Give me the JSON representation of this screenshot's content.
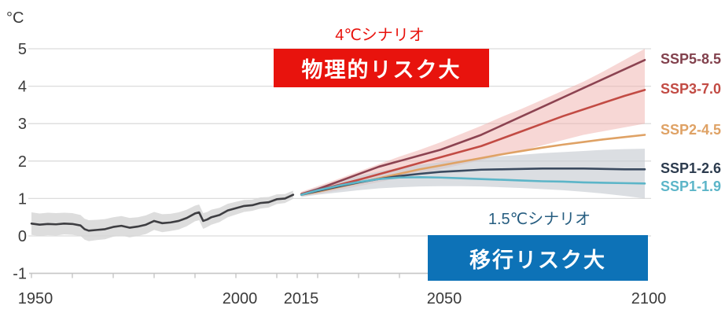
{
  "chart_data": {
    "type": "line",
    "title": "",
    "ylabel": "°C",
    "xlim": [
      1950,
      2100
    ],
    "ylim": [
      -1,
      5
    ],
    "y_ticks": [
      5,
      4,
      3,
      2,
      1,
      0,
      -1
    ],
    "x_tick_labels": [
      1950,
      2000,
      2015,
      2050,
      2100
    ],
    "x_minor_ticks": [
      1950,
      1960,
      1970,
      1980,
      1990,
      2000,
      2010,
      2015,
      2020,
      2030,
      2040,
      2050,
      2060,
      2070,
      2080,
      2090,
      2100
    ],
    "grid": "horizontal",
    "legend_position": "labels-at-right-edge",
    "historical": {
      "id": "observed-temperature",
      "color": "#3e3e42",
      "band_color": "#d7d7d7",
      "band_opacity": 0.85,
      "x": [
        1950,
        1952,
        1954,
        1956,
        1958,
        1960,
        1962,
        1963,
        1964,
        1966,
        1968,
        1970,
        1972,
        1974,
        1976,
        1978,
        1980,
        1982,
        1984,
        1986,
        1988,
        1990,
        1991,
        1992,
        1993,
        1994,
        1996,
        1998,
        2000,
        2002,
        2004,
        2006,
        2008,
        2010,
        2012,
        2014
      ],
      "y": [
        0.33,
        0.3,
        0.32,
        0.31,
        0.33,
        0.32,
        0.28,
        0.18,
        0.14,
        0.16,
        0.18,
        0.24,
        0.27,
        0.22,
        0.25,
        0.3,
        0.4,
        0.34,
        0.36,
        0.4,
        0.48,
        0.6,
        0.63,
        0.4,
        0.44,
        0.5,
        0.56,
        0.68,
        0.74,
        0.8,
        0.82,
        0.88,
        0.9,
        0.98,
        1.0,
        1.1
      ],
      "band_upper": [
        0.63,
        0.6,
        0.62,
        0.61,
        0.62,
        0.61,
        0.56,
        0.46,
        0.42,
        0.43,
        0.45,
        0.5,
        0.53,
        0.48,
        0.5,
        0.55,
        0.64,
        0.58,
        0.59,
        0.63,
        0.7,
        0.81,
        0.84,
        0.61,
        0.64,
        0.7,
        0.75,
        0.86,
        0.91,
        0.96,
        0.97,
        1.03,
        1.04,
        1.11,
        1.12,
        1.21
      ],
      "band_lower": [
        0.03,
        0.0,
        0.02,
        0.01,
        0.04,
        0.03,
        0.0,
        -0.1,
        -0.14,
        -0.11,
        -0.09,
        -0.02,
        0.01,
        -0.04,
        0.0,
        0.05,
        0.16,
        0.1,
        0.13,
        0.17,
        0.26,
        0.39,
        0.42,
        0.19,
        0.24,
        0.3,
        0.37,
        0.5,
        0.57,
        0.64,
        0.67,
        0.73,
        0.76,
        0.85,
        0.88,
        0.99
      ]
    },
    "proj_x": [
      2016,
      2020,
      2025,
      2030,
      2035,
      2040,
      2045,
      2050,
      2055,
      2060,
      2065,
      2070,
      2075,
      2080,
      2085,
      2090,
      2095,
      2100
    ],
    "series": [
      {
        "label": "SSP5-8.5",
        "color": "#8c4351",
        "label_color": "#82414d",
        "label_dy": 0,
        "y": [
          1.12,
          1.25,
          1.45,
          1.65,
          1.85,
          2.0,
          2.15,
          2.3,
          2.5,
          2.7,
          2.95,
          3.2,
          3.45,
          3.7,
          3.95,
          4.2,
          4.45,
          4.7
        ]
      },
      {
        "label": "SSP3-7.0",
        "color": "#c24b44",
        "label_color": "#c24b44",
        "label_dy": 0,
        "y": [
          1.12,
          1.22,
          1.36,
          1.5,
          1.65,
          1.8,
          1.95,
          2.1,
          2.25,
          2.4,
          2.6,
          2.8,
          3.0,
          3.2,
          3.38,
          3.56,
          3.74,
          3.9
        ]
      },
      {
        "label": "SSP2-4.5",
        "color": "#dfa265",
        "label_color": "#dfa265",
        "label_dy": -5,
        "y": [
          1.1,
          1.18,
          1.3,
          1.42,
          1.54,
          1.66,
          1.78,
          1.88,
          1.98,
          2.08,
          2.18,
          2.27,
          2.36,
          2.44,
          2.51,
          2.58,
          2.64,
          2.7
        ]
      },
      {
        "label": "SSP1-2.6",
        "color": "#3a4a5f",
        "label_color": "#2c3b4e",
        "label_dy": 0,
        "y": [
          1.1,
          1.2,
          1.32,
          1.43,
          1.52,
          1.6,
          1.66,
          1.71,
          1.74,
          1.77,
          1.78,
          1.79,
          1.8,
          1.8,
          1.8,
          1.79,
          1.78,
          1.78
        ]
      },
      {
        "label": "SSP1-1.9",
        "color": "#5cb5c8",
        "label_color": "#5cb5c8",
        "label_dy": 5,
        "y": [
          1.1,
          1.22,
          1.34,
          1.44,
          1.52,
          1.56,
          1.57,
          1.56,
          1.54,
          1.52,
          1.5,
          1.48,
          1.46,
          1.45,
          1.43,
          1.42,
          1.41,
          1.4
        ]
      }
    ],
    "bands": [
      {
        "id": "high-emission-uncertainty-band",
        "color": "#f0b0ac",
        "opacity": 0.5,
        "upper": [
          1.18,
          1.33,
          1.52,
          1.72,
          1.92,
          2.12,
          2.3,
          2.5,
          2.72,
          2.94,
          3.18,
          3.4,
          3.64,
          3.88,
          4.12,
          4.4,
          4.7,
          5.0
        ],
        "lower": [
          1.06,
          1.12,
          1.22,
          1.33,
          1.44,
          1.55,
          1.67,
          1.78,
          1.9,
          2.02,
          2.15,
          2.28,
          2.42,
          2.56,
          2.7,
          2.8,
          2.9,
          3.0
        ]
      },
      {
        "id": "low-emission-uncertainty-band",
        "color": "#c7cdd3",
        "opacity": 0.65,
        "upper": [
          1.16,
          1.3,
          1.45,
          1.6,
          1.72,
          1.82,
          1.9,
          1.97,
          2.03,
          2.08,
          2.13,
          2.17,
          2.21,
          2.24,
          2.27,
          2.3,
          2.32,
          2.33
        ],
        "lower": [
          1.04,
          1.1,
          1.16,
          1.22,
          1.27,
          1.3,
          1.32,
          1.33,
          1.33,
          1.32,
          1.3,
          1.28,
          1.25,
          1.22,
          1.18,
          1.13,
          1.07,
          1.0
        ]
      }
    ]
  },
  "annotations": {
    "scenario_4c": {
      "text": "4℃シナリオ",
      "color": "#e8130d"
    },
    "physical_risk": {
      "text": "物理的リスク大",
      "bg_color": "#e8130d",
      "text_color": "#ffffff"
    },
    "scenario_1_5c": {
      "text": "1.5℃シナリオ",
      "color": "#265d80"
    },
    "transition_risk": {
      "text": "移行リスク大",
      "bg_color": "#0d72b7",
      "text_color": "#ffffff"
    }
  },
  "colors": {
    "gridline": "#dcdcdc",
    "axis": "#c6c6c6",
    "tick_text": "#3a3a3a"
  }
}
